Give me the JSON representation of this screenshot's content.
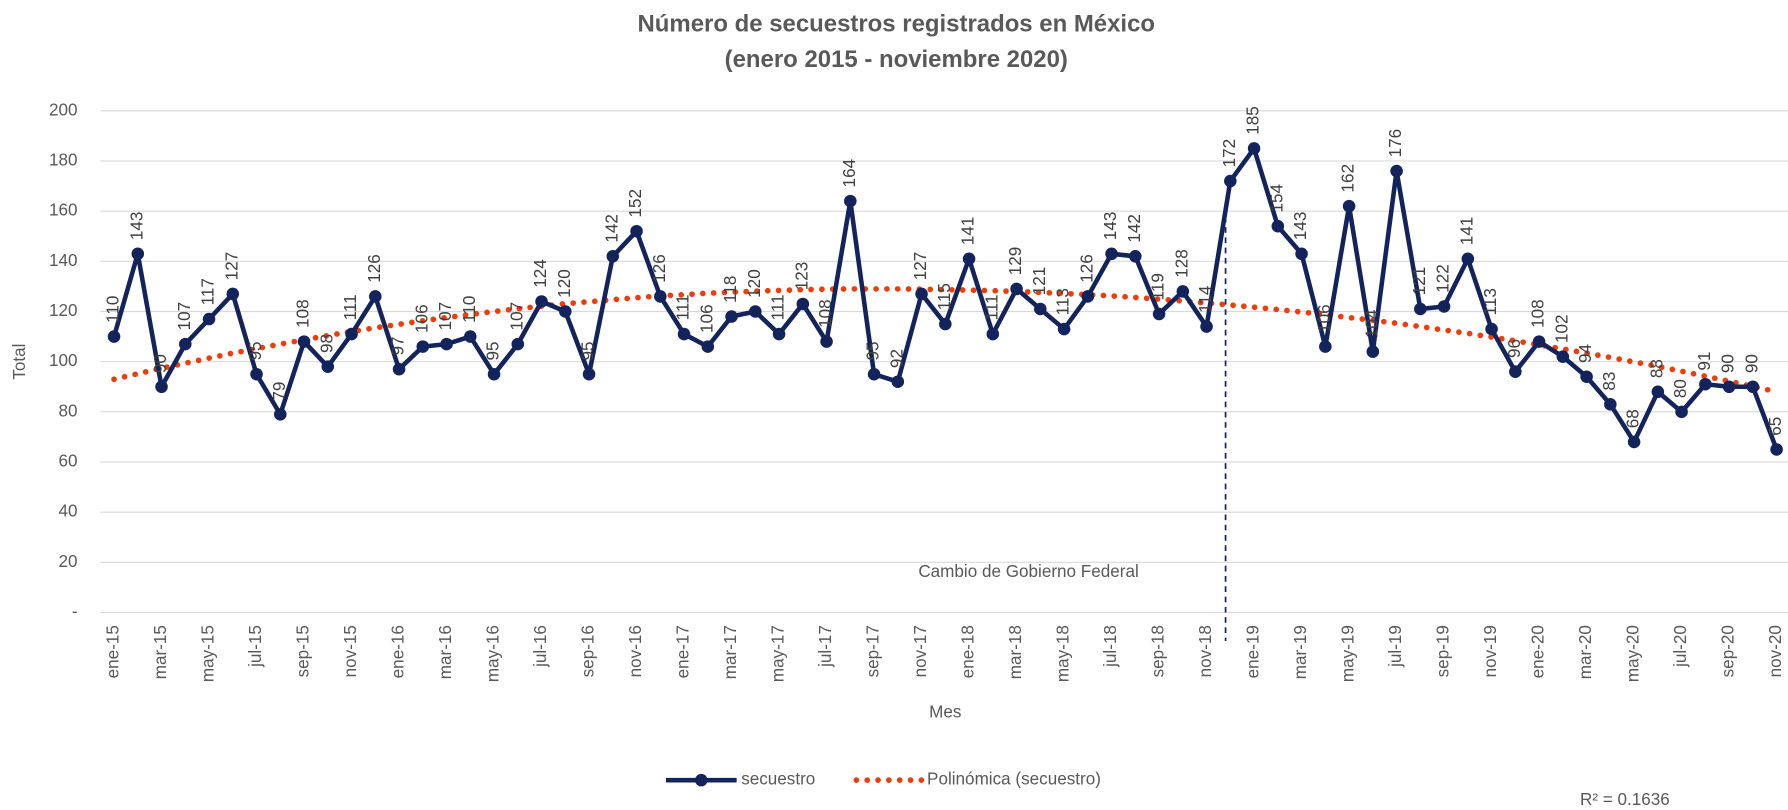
{
  "chart_data": {
    "type": "line",
    "title": "Número de secuestros registrados en México",
    "subtitle": "(enero 2015 - noviembre 2020)",
    "y_label": "Total",
    "x_label": "Mes",
    "annotation": "Cambio de Gobierno Federal",
    "r_squared": "R² = 0.1636",
    "categories": [
      "ene-15",
      null,
      "mar-15",
      null,
      "may-15",
      null,
      "jul-15",
      null,
      "sep-15",
      null,
      "nov-15",
      null,
      "ene-16",
      null,
      "mar-16",
      null,
      "may-16",
      null,
      "jul-16",
      null,
      "sep-16",
      null,
      "nov-16",
      null,
      "ene-17",
      null,
      "mar-17",
      null,
      "may-17",
      null,
      "jul-17",
      null,
      "sep-17",
      null,
      "nov-17",
      null,
      "ene-18",
      null,
      "mar-18",
      null,
      "may-18",
      null,
      "jul-18",
      null,
      "sep-18",
      null,
      "nov-18",
      null,
      "ene-19",
      null,
      "mar-19",
      null,
      "may-19",
      null,
      "jul-19",
      null,
      "sep-19",
      null,
      "nov-19",
      null,
      "ene-20",
      null,
      "mar-20",
      null,
      "may-20",
      null,
      "jul-20",
      null,
      "sep-20",
      null,
      "nov-20"
    ],
    "series": [
      {
        "name": "secuestro",
        "color": "#13235b",
        "style": "solid",
        "markers": true,
        "data_labels": true,
        "values": [
          110,
          143,
          90,
          107,
          117,
          127,
          95,
          79,
          108,
          98,
          111,
          126,
          97,
          106,
          107,
          110,
          95,
          107,
          124,
          120,
          95,
          142,
          152,
          126,
          111,
          106,
          118,
          120,
          111,
          123,
          108,
          164,
          95,
          92,
          127,
          115,
          141,
          111,
          129,
          121,
          113,
          126,
          143,
          142,
          119,
          128,
          114,
          172,
          185,
          154,
          143,
          106,
          162,
          104,
          176,
          121,
          122,
          141,
          113,
          96,
          108,
          102,
          94,
          83,
          68,
          88,
          80,
          91,
          90,
          90,
          65
        ]
      },
      {
        "name": "Polinómica (secuestro)",
        "color": "#f03c0a",
        "style": "dotted",
        "markers": false,
        "data_labels": false,
        "values": [
          93,
          95.2,
          97.4,
          99.4,
          101.4,
          103.4,
          105.2,
          107,
          108.7,
          110.4,
          112,
          113.5,
          114.9,
          116.3,
          117.6,
          118.8,
          120,
          121.1,
          122.1,
          123.1,
          123.9,
          124.7,
          125.5,
          126.2,
          126.7,
          127.3,
          127.7,
          128.1,
          128.4,
          128.7,
          128.9,
          129,
          129,
          129,
          128.9,
          128.7,
          128.5,
          128.3,
          128,
          127.6,
          127.2,
          126.7,
          126.2,
          125.6,
          124.9,
          124.2,
          123.4,
          122.6,
          121.7,
          120.8,
          119.8,
          118.7,
          117.6,
          116.5,
          115.3,
          114,
          112.6,
          111.3,
          109.8,
          108.3,
          106.7,
          105.1,
          103.4,
          101.7,
          99.9,
          98.1,
          96.2,
          94.2,
          92.2,
          90.1,
          88
        ]
      }
    ],
    "ylim": [
      0,
      200
    ],
    "yticks": [
      {
        "value": 0,
        "label": "-"
      },
      20,
      40,
      60,
      80,
      100,
      120,
      140,
      160,
      180,
      200
    ],
    "grid": true,
    "legend": "bottom"
  }
}
